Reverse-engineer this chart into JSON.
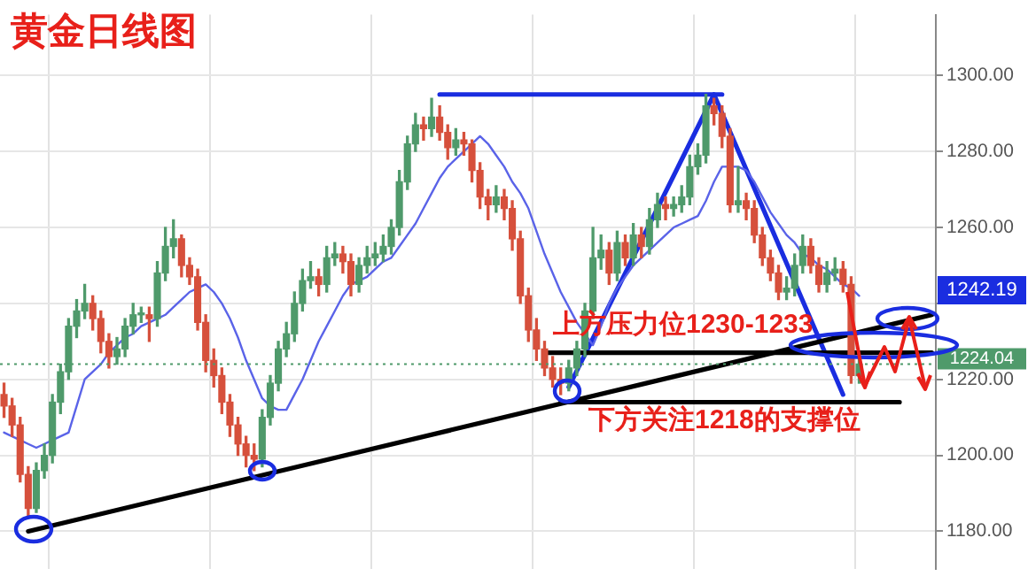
{
  "chart_data": {
    "type": "candlestick",
    "title": "黄金日线图",
    "categories": [
      null,
      null,
      null,
      null,
      null,
      null,
      null,
      null,
      null,
      null,
      null,
      null,
      null,
      null,
      null,
      null,
      null,
      null,
      null,
      null,
      null,
      null,
      null,
      null,
      null,
      null,
      null,
      null,
      null,
      null,
      null,
      null,
      null,
      null,
      null,
      null,
      null,
      null,
      null,
      null,
      null,
      null,
      null,
      null,
      null,
      null,
      null,
      null,
      null,
      null,
      null,
      null,
      null,
      null,
      null,
      null,
      null,
      null,
      null,
      null,
      null,
      null,
      null,
      null,
      null,
      null,
      null,
      null,
      null,
      null,
      null,
      null,
      null,
      null,
      null,
      null,
      null,
      null,
      null,
      null,
      null,
      null,
      null,
      null,
      null,
      null,
      null,
      null,
      null,
      null,
      null,
      null,
      null,
      null,
      null,
      null,
      null,
      null,
      null,
      null,
      null,
      null,
      null,
      null,
      null,
      null,
      null,
      null,
      null,
      null,
      null,
      null,
      null,
      null,
      null,
      null
    ],
    "ohlc": [
      [
        1216,
        1219,
        1210,
        1213
      ],
      [
        1213,
        1215,
        1205,
        1208
      ],
      [
        1208,
        1210,
        1193,
        1195
      ],
      [
        1195,
        1197,
        1184,
        1186
      ],
      [
        1186,
        1198,
        1185,
        1196
      ],
      [
        1196,
        1203,
        1194,
        1200
      ],
      [
        1200,
        1216,
        1198,
        1214
      ],
      [
        1214,
        1224,
        1211,
        1222
      ],
      [
        1222,
        1236,
        1220,
        1234
      ],
      [
        1234,
        1241,
        1231,
        1238
      ],
      [
        1238,
        1245,
        1236,
        1240
      ],
      [
        1240,
        1242,
        1233,
        1236
      ],
      [
        1236,
        1238,
        1227,
        1230
      ],
      [
        1230,
        1232,
        1223,
        1226
      ],
      [
        1226,
        1231,
        1224,
        1228
      ],
      [
        1228,
        1236,
        1226,
        1234
      ],
      [
        1234,
        1240,
        1232,
        1237
      ],
      [
        1237,
        1239,
        1235,
        1237
      ],
      [
        1237,
        1239,
        1230,
        1236
      ],
      [
        1236,
        1251,
        1234,
        1248
      ],
      [
        1248,
        1260,
        1246,
        1255
      ],
      [
        1255,
        1262,
        1252,
        1257
      ],
      [
        1257,
        1258,
        1247,
        1250
      ],
      [
        1250,
        1252,
        1245,
        1247
      ],
      [
        1247,
        1249,
        1233,
        1235
      ],
      [
        1235,
        1237,
        1222,
        1225
      ],
      [
        1225,
        1228,
        1218,
        1221
      ],
      [
        1221,
        1223,
        1211,
        1214
      ],
      [
        1214,
        1216,
        1205,
        1208
      ],
      [
        1208,
        1210,
        1200,
        1203
      ],
      [
        1203,
        1205,
        1197,
        1200
      ],
      [
        1200,
        1203,
        1196,
        1199
      ],
      [
        1199,
        1212,
        1197,
        1210
      ],
      [
        1210,
        1221,
        1208,
        1219
      ],
      [
        1219,
        1230,
        1217,
        1228
      ],
      [
        1228,
        1235,
        1226,
        1232
      ],
      [
        1232,
        1243,
        1230,
        1240
      ],
      [
        1240,
        1249,
        1238,
        1246
      ],
      [
        1246,
        1251,
        1244,
        1247
      ],
      [
        1247,
        1249,
        1242,
        1245
      ],
      [
        1245,
        1255,
        1243,
        1252
      ],
      [
        1252,
        1256,
        1250,
        1253
      ],
      [
        1253,
        1255,
        1248,
        1251
      ],
      [
        1251,
        1253,
        1242,
        1245
      ],
      [
        1245,
        1252,
        1243,
        1250
      ],
      [
        1250,
        1255,
        1248,
        1252
      ],
      [
        1252,
        1256,
        1250,
        1253
      ],
      [
        1253,
        1258,
        1251,
        1255
      ],
      [
        1255,
        1262,
        1253,
        1260
      ],
      [
        1260,
        1275,
        1258,
        1272
      ],
      [
        1272,
        1284,
        1270,
        1282
      ],
      [
        1282,
        1290,
        1280,
        1287
      ],
      [
        1287,
        1289,
        1283,
        1286
      ],
      [
        1286,
        1294,
        1284,
        1289
      ],
      [
        1289,
        1292,
        1283,
        1285
      ],
      [
        1285,
        1287,
        1278,
        1281
      ],
      [
        1281,
        1286,
        1279,
        1283
      ],
      [
        1283,
        1285,
        1279,
        1282
      ],
      [
        1282,
        1283,
        1272,
        1275
      ],
      [
        1275,
        1277,
        1265,
        1268
      ],
      [
        1268,
        1270,
        1262,
        1266
      ],
      [
        1266,
        1271,
        1264,
        1268
      ],
      [
        1268,
        1270,
        1262,
        1265
      ],
      [
        1265,
        1267,
        1254,
        1257
      ],
      [
        1257,
        1259,
        1240,
        1242
      ],
      [
        1242,
        1244,
        1230,
        1233
      ],
      [
        1233,
        1236,
        1225,
        1228
      ],
      [
        1228,
        1230,
        1221,
        1223
      ],
      [
        1223,
        1226,
        1218,
        1220
      ],
      [
        1220,
        1223,
        1216,
        1219
      ],
      [
        1219,
        1225,
        1217,
        1223
      ],
      [
        1223,
        1230,
        1221,
        1228
      ],
      [
        1228,
        1240,
        1226,
        1238
      ],
      [
        1238,
        1260,
        1236,
        1252
      ],
      [
        1252,
        1258,
        1249,
        1254
      ],
      [
        1254,
        1256,
        1245,
        1248
      ],
      [
        1248,
        1259,
        1246,
        1256
      ],
      [
        1256,
        1258,
        1250,
        1252
      ],
      [
        1252,
        1261,
        1250,
        1258
      ],
      [
        1258,
        1260,
        1252,
        1255
      ],
      [
        1255,
        1265,
        1253,
        1262
      ],
      [
        1262,
        1269,
        1260,
        1266
      ],
      [
        1266,
        1268,
        1262,
        1265
      ],
      [
        1265,
        1268,
        1263,
        1266
      ],
      [
        1266,
        1271,
        1264,
        1268
      ],
      [
        1268,
        1279,
        1266,
        1276
      ],
      [
        1276,
        1282,
        1274,
        1279
      ],
      [
        1279,
        1295,
        1277,
        1292
      ],
      [
        1292,
        1294,
        1287,
        1290
      ],
      [
        1290,
        1292,
        1281,
        1284
      ],
      [
        1284,
        1286,
        1264,
        1266
      ],
      [
        1266,
        1276,
        1264,
        1267
      ],
      [
        1267,
        1269,
        1262,
        1265
      ],
      [
        1265,
        1267,
        1256,
        1258
      ],
      [
        1258,
        1260,
        1250,
        1252
      ],
      [
        1252,
        1254,
        1246,
        1248
      ],
      [
        1248,
        1250,
        1241,
        1243
      ],
      [
        1243,
        1247,
        1241,
        1244
      ],
      [
        1244,
        1253,
        1242,
        1250
      ],
      [
        1250,
        1258,
        1248,
        1255
      ],
      [
        1255,
        1257,
        1248,
        1250
      ],
      [
        1250,
        1252,
        1243,
        1245
      ],
      [
        1245,
        1251,
        1243,
        1248
      ],
      [
        1248,
        1252,
        1246,
        1249
      ],
      [
        1249,
        1251,
        1243,
        1245
      ],
      [
        1245,
        1247,
        1219,
        1221
      ],
      [
        1221,
        1226,
        1219,
        1224.04
      ],
      null,
      null,
      null,
      null,
      null,
      null,
      null,
      null,
      null
    ],
    "colors": [
      "#d6503c",
      "#d6503c",
      "#d6503c",
      "#d6503c",
      "#4f9a6b",
      "#4f9a6b",
      "#4f9a6b",
      "#4f9a6b",
      "#4f9a6b",
      "#4f9a6b",
      "#4f9a6b",
      "#d6503c",
      "#d6503c",
      "#d6503c",
      "#4f9a6b",
      "#4f9a6b",
      "#4f9a6b",
      "#4f9a6b",
      "#d6503c",
      "#4f9a6b",
      "#4f9a6b",
      "#4f9a6b",
      "#d6503c",
      "#d6503c",
      "#d6503c",
      "#d6503c",
      "#d6503c",
      "#d6503c",
      "#d6503c",
      "#d6503c",
      "#d6503c",
      "#d6503c",
      "#4f9a6b",
      "#4f9a6b",
      "#4f9a6b",
      "#4f9a6b",
      "#4f9a6b",
      "#4f9a6b",
      "#4f9a6b",
      "#d6503c",
      "#4f9a6b",
      "#4f9a6b",
      "#d6503c",
      "#d6503c",
      "#4f9a6b",
      "#4f9a6b",
      "#4f9a6b",
      "#4f9a6b",
      "#4f9a6b",
      "#4f9a6b",
      "#4f9a6b",
      "#4f9a6b",
      "#d6503c",
      "#4f9a6b",
      "#d6503c",
      "#d6503c",
      "#4f9a6b",
      "#d6503c",
      "#d6503c",
      "#d6503c",
      "#d6503c",
      "#4f9a6b",
      "#d6503c",
      "#d6503c",
      "#d6503c",
      "#d6503c",
      "#d6503c",
      "#d6503c",
      "#d6503c",
      "#d6503c",
      "#4f9a6b",
      "#4f9a6b",
      "#4f9a6b",
      "#4f9a6b",
      "#4f9a6b",
      "#d6503c",
      "#4f9a6b",
      "#d6503c",
      "#4f9a6b",
      "#d6503c",
      "#4f9a6b",
      "#4f9a6b",
      "#d6503c",
      "#4f9a6b",
      "#4f9a6b",
      "#4f9a6b",
      "#4f9a6b",
      "#4f9a6b",
      "#d6503c",
      "#d6503c",
      "#d6503c",
      "#4f9a6b",
      "#d6503c",
      "#d6503c",
      "#d6503c",
      "#d6503c",
      "#d6503c",
      "#4f9a6b",
      "#4f9a6b",
      "#4f9a6b",
      "#d6503c",
      "#d6503c",
      "#4f9a6b",
      "#4f9a6b",
      "#d6503c",
      "#d6503c",
      "#4f9a6b",
      null,
      null,
      null,
      null,
      null,
      null,
      null,
      null,
      null
    ],
    "series": [
      {
        "type": "line",
        "color": "#5a63e8",
        "values": [
          1206,
          1205,
          1204,
          1203,
          1202,
          1203,
          1204,
          1205,
          1206,
          1213,
          1220,
          1222,
          1224,
          1227,
          1229,
          1231,
          1232,
          1234,
          1235,
          1236,
          1237,
          1239,
          1241,
          1243,
          1244,
          1245,
          1243,
          1240,
          1236,
          1231,
          1225,
          1220,
          1215,
          1213,
          1212,
          1212,
          1216,
          1220,
          1225,
          1230,
          1234,
          1238,
          1242,
          1245,
          1246,
          1247,
          1249,
          1251,
          1252,
          1255,
          1258,
          1261,
          1265,
          1269,
          1273,
          1276,
          1278,
          1280,
          1282,
          1284,
          1282,
          1279,
          1276,
          1272,
          1269,
          1265,
          1259,
          1253,
          1248,
          1243,
          1239,
          1235,
          1232,
          1229,
          1234,
          1240,
          1244,
          1247,
          1250,
          1252,
          1254,
          1256,
          1258,
          1260,
          1261,
          1262,
          1263,
          1267,
          1272,
          1276,
          1276,
          1276,
          1275,
          1272,
          1268,
          1264,
          1261,
          1258,
          1256,
          1253,
          1252,
          1250,
          1249,
          1247,
          1245,
          1244,
          1242,
          null,
          null,
          null,
          null,
          null,
          null,
          null,
          null,
          null
        ]
      },
      {
        "type": "line",
        "color": "#000000",
        "values": [
          null,
          null,
          null,
          1180,
          null,
          null,
          null,
          null,
          null,
          null,
          null,
          null,
          null,
          null,
          null,
          null,
          null,
          null,
          null,
          null,
          null,
          null,
          null,
          null,
          null,
          null,
          null,
          null,
          null,
          null,
          null,
          null,
          null,
          null,
          null,
          null,
          null,
          null,
          null,
          null,
          null,
          null,
          null,
          null,
          null,
          null,
          null,
          null,
          null,
          null,
          null,
          null,
          null,
          null,
          null,
          null,
          null,
          null,
          null,
          null,
          null,
          null,
          null,
          null,
          null,
          null,
          null,
          null,
          null,
          null,
          null,
          null,
          null,
          null,
          null,
          null,
          null,
          null,
          null,
          null,
          null,
          null,
          null,
          null,
          null,
          null,
          null,
          null,
          null,
          null,
          null,
          null,
          null,
          null,
          null,
          null,
          null,
          null,
          null,
          null,
          null,
          null,
          null,
          null,
          null,
          null,
          null,
          null,
          null,
          null,
          null,
          null,
          null,
          null,
          null,
          1237
        ]
      },
      {
        "type": "line",
        "color": "#000000",
        "values": [
          null,
          null,
          null,
          null,
          null,
          null,
          null,
          null,
          null,
          null,
          null,
          null,
          null,
          null,
          null,
          null,
          null,
          null,
          null,
          null,
          null,
          null,
          null,
          null,
          null,
          null,
          null,
          null,
          null,
          null,
          null,
          null,
          null,
          null,
          null,
          null,
          null,
          null,
          null,
          null,
          null,
          null,
          null,
          null,
          null,
          null,
          null,
          null,
          null,
          null,
          null,
          null,
          null,
          null,
          null,
          null,
          null,
          null,
          null,
          null,
          null,
          null,
          null,
          null,
          null,
          null,
          null,
          1227,
          null,
          null,
          null,
          null,
          null,
          null,
          null,
          null,
          null,
          null,
          null,
          null,
          null,
          null,
          null,
          null,
          null,
          null,
          null,
          null,
          null,
          null,
          null,
          null,
          null,
          null,
          null,
          null,
          null,
          null,
          null,
          null,
          null,
          null,
          null,
          null,
          null,
          null,
          null,
          null,
          null,
          null,
          null,
          null,
          null,
          null,
          null,
          1227
        ]
      },
      {
        "type": "line",
        "color": "#000000",
        "values": [
          null,
          null,
          null,
          null,
          null,
          null,
          null,
          null,
          null,
          null,
          null,
          null,
          null,
          null,
          null,
          null,
          null,
          null,
          null,
          null,
          null,
          null,
          null,
          null,
          null,
          null,
          null,
          null,
          null,
          null,
          null,
          null,
          null,
          null,
          null,
          null,
          null,
          null,
          null,
          null,
          null,
          null,
          null,
          null,
          null,
          null,
          null,
          null,
          null,
          null,
          null,
          null,
          null,
          null,
          null,
          null,
          null,
          null,
          null,
          null,
          null,
          null,
          null,
          null,
          null,
          null,
          null,
          null,
          null,
          1214,
          null,
          null,
          null,
          null,
          null,
          null,
          null,
          null,
          null,
          null,
          null,
          null,
          null,
          null,
          null,
          null,
          null,
          null,
          null,
          null,
          null,
          null,
          null,
          null,
          null,
          null,
          null,
          null,
          null,
          null,
          null,
          null,
          null,
          null,
          null,
          null,
          null,
          null,
          null,
          null,
          null,
          1214,
          null,
          null,
          null,
          null
        ]
      },
      {
        "type": "line",
        "color": "#1a2de0",
        "values": [
          null,
          null,
          null,
          null,
          null,
          null,
          null,
          null,
          null,
          null,
          null,
          null,
          null,
          null,
          null,
          null,
          null,
          null,
          null,
          null,
          null,
          null,
          null,
          null,
          null,
          null,
          null,
          null,
          null,
          null,
          null,
          null,
          null,
          null,
          null,
          null,
          null,
          null,
          null,
          null,
          null,
          null,
          null,
          null,
          null,
          null,
          null,
          null,
          null,
          null,
          null,
          null,
          null,
          null,
          1295,
          null,
          null,
          null,
          null,
          null,
          null,
          null,
          null,
          null,
          null,
          null,
          null,
          null,
          null,
          null,
          null,
          null,
          null,
          null,
          null,
          null,
          null,
          null,
          null,
          null,
          null,
          null,
          null,
          null,
          null,
          null,
          null,
          null,
          null,
          1295,
          null,
          null,
          null,
          null,
          null,
          null,
          null,
          null,
          null,
          null,
          null,
          null,
          null,
          null,
          null,
          null,
          null,
          null,
          null,
          null,
          null,
          null,
          null,
          null,
          null,
          null
        ]
      },
      {
        "type": "line",
        "color": "#1a2de0",
        "values": [
          null,
          null,
          null,
          null,
          null,
          null,
          null,
          null,
          null,
          null,
          null,
          null,
          null,
          null,
          null,
          null,
          null,
          null,
          null,
          null,
          null,
          null,
          null,
          null,
          null,
          null,
          null,
          null,
          null,
          null,
          null,
          null,
          null,
          null,
          null,
          null,
          null,
          null,
          null,
          null,
          null,
          null,
          null,
          null,
          null,
          null,
          null,
          null,
          null,
          null,
          null,
          null,
          null,
          null,
          null,
          null,
          null,
          null,
          null,
          null,
          null,
          null,
          null,
          null,
          null,
          null,
          null,
          null,
          null,
          null,
          1218,
          null,
          null,
          null,
          null,
          null,
          null,
          null,
          null,
          null,
          null,
          null,
          null,
          null,
          null,
          null,
          null,
          null,
          1295,
          null,
          null,
          null,
          null,
          null,
          null,
          null,
          null,
          null,
          null,
          null,
          null,
          null,
          null,
          null,
          1216,
          null,
          null,
          null,
          null,
          null,
          null,
          null,
          null,
          null,
          null,
          null
        ]
      }
    ],
    "ylim": [
      1170,
      1316
    ],
    "yticks": [
      {
        "value": 1180,
        "label": "1180.00"
      },
      {
        "value": 1200,
        "label": "1200.00"
      },
      {
        "value": 1220,
        "label": "1220.00"
      },
      {
        "value": 1240,
        "label": null
      },
      {
        "value": 1260,
        "label": "1260.00"
      },
      {
        "value": 1280,
        "label": "1280.00"
      },
      {
        "value": 1300,
        "label": "1300.00"
      }
    ],
    "ref_lines": [
      {
        "axis": "y",
        "value": 1224.04,
        "label": "1224.04",
        "color": "#4f9a6b",
        "line_style": "dotted"
      }
    ],
    "annotations": [
      "上方压力位1230-1233",
      "下方关注1218的支撑位",
      "1242.19"
    ],
    "grid": true,
    "legend": false,
    "tick_labels": "y",
    "marker": "none",
    "line_style": "solid"
  }
}
